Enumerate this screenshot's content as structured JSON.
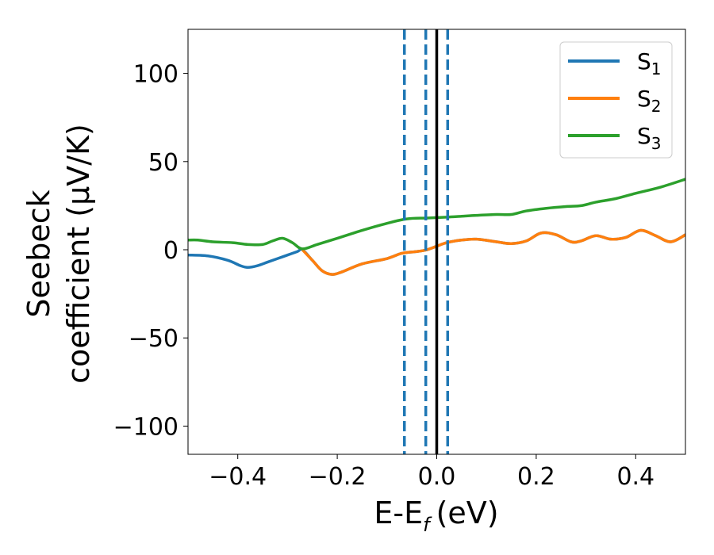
{
  "chart_data": {
    "type": "line",
    "xlabel": "E-E",
    "xlabel_sub": "f",
    "xlabel_unit": "(eV)",
    "ylabel_line1": "Seebeck",
    "ylabel_line2": "coefficient  (μV/K)",
    "xlim": [
      -0.5,
      0.5
    ],
    "ylim": [
      -116,
      125
    ],
    "xticks": [
      -0.4,
      -0.2,
      0.0,
      0.2,
      0.4
    ],
    "xtick_labels": [
      "−0.4",
      "−0.2",
      "0.0",
      "0.2",
      "0.4"
    ],
    "yticks": [
      -100,
      -50,
      0,
      50,
      100
    ],
    "ytick_labels": [
      "−100",
      "−50",
      "0",
      "50",
      "100"
    ],
    "legend_position": "top-right",
    "grid": false,
    "series": [
      {
        "name": "S",
        "sub": "1",
        "color": "#1f77b4",
        "points": [
          [
            -0.5,
            -3
          ],
          [
            -0.46,
            -3.5
          ],
          [
            -0.42,
            -6
          ],
          [
            -0.395,
            -9
          ],
          [
            -0.38,
            -10
          ],
          [
            -0.36,
            -9
          ],
          [
            -0.34,
            -7
          ],
          [
            -0.32,
            -5
          ],
          [
            -0.3,
            -3
          ],
          [
            -0.28,
            -1
          ],
          [
            -0.27,
            0
          ],
          [
            -0.25,
            -6
          ],
          [
            -0.23,
            -12
          ],
          [
            -0.21,
            -14
          ],
          [
            -0.19,
            -12.5
          ],
          [
            -0.15,
            -8
          ],
          [
            -0.1,
            -5
          ],
          [
            -0.07,
            -2
          ],
          [
            -0.04,
            -1
          ],
          [
            -0.02,
            0
          ],
          [
            0.0,
            2
          ],
          [
            0.02,
            4
          ],
          [
            0.05,
            5.5
          ],
          [
            0.08,
            6
          ],
          [
            0.12,
            4.5
          ],
          [
            0.15,
            3.5
          ],
          [
            0.18,
            5
          ],
          [
            0.21,
            9.5
          ],
          [
            0.24,
            8.5
          ],
          [
            0.27,
            4.5
          ],
          [
            0.29,
            5
          ],
          [
            0.32,
            8
          ],
          [
            0.35,
            6
          ],
          [
            0.38,
            7
          ],
          [
            0.41,
            11
          ],
          [
            0.44,
            8
          ],
          [
            0.47,
            4.5
          ],
          [
            0.5,
            8.5
          ]
        ]
      },
      {
        "name": "S",
        "sub": "2",
        "color": "#ff7f0e",
        "points": [
          [
            -0.27,
            0
          ],
          [
            -0.25,
            -6
          ],
          [
            -0.23,
            -12
          ],
          [
            -0.21,
            -14
          ],
          [
            -0.19,
            -12.5
          ],
          [
            -0.15,
            -8
          ],
          [
            -0.1,
            -5
          ],
          [
            -0.07,
            -2
          ],
          [
            -0.04,
            -1
          ],
          [
            -0.02,
            0
          ],
          [
            0.0,
            2
          ],
          [
            0.02,
            4
          ],
          [
            0.05,
            5.5
          ],
          [
            0.08,
            6
          ],
          [
            0.12,
            4.5
          ],
          [
            0.15,
            3.5
          ],
          [
            0.18,
            5
          ],
          [
            0.21,
            9.5
          ],
          [
            0.24,
            8.5
          ],
          [
            0.27,
            4.5
          ],
          [
            0.29,
            5
          ],
          [
            0.32,
            8
          ],
          [
            0.35,
            6
          ],
          [
            0.38,
            7
          ],
          [
            0.41,
            11
          ],
          [
            0.44,
            8
          ],
          [
            0.47,
            4.5
          ],
          [
            0.5,
            8.5
          ]
        ]
      },
      {
        "name": "S",
        "sub": "3",
        "color": "#2ca02c",
        "points": [
          [
            -0.5,
            5.5
          ],
          [
            -0.48,
            5.5
          ],
          [
            -0.45,
            4.5
          ],
          [
            -0.41,
            4
          ],
          [
            -0.38,
            3
          ],
          [
            -0.35,
            3
          ],
          [
            -0.33,
            5
          ],
          [
            -0.31,
            6.5
          ],
          [
            -0.29,
            4
          ],
          [
            -0.27,
            0.5
          ],
          [
            -0.24,
            3
          ],
          [
            -0.2,
            6.5
          ],
          [
            -0.15,
            11
          ],
          [
            -0.1,
            15
          ],
          [
            -0.06,
            17.5
          ],
          [
            -0.02,
            18
          ],
          [
            0.02,
            18.5
          ],
          [
            0.05,
            19
          ],
          [
            0.08,
            19.5
          ],
          [
            0.12,
            20
          ],
          [
            0.15,
            20
          ],
          [
            0.18,
            22
          ],
          [
            0.22,
            23.5
          ],
          [
            0.26,
            24.5
          ],
          [
            0.29,
            25
          ],
          [
            0.32,
            27
          ],
          [
            0.36,
            29
          ],
          [
            0.4,
            32
          ],
          [
            0.45,
            35.5
          ],
          [
            0.5,
            40
          ]
        ]
      }
    ],
    "vlines": [
      {
        "x": -0.065,
        "style": "dashed",
        "color": "#1f77b4"
      },
      {
        "x": -0.022,
        "style": "dashed",
        "color": "#1f77b4"
      },
      {
        "x": 0.0,
        "style": "solid",
        "color": "#000000"
      },
      {
        "x": 0.022,
        "style": "dashed",
        "color": "#1f77b4"
      }
    ]
  }
}
